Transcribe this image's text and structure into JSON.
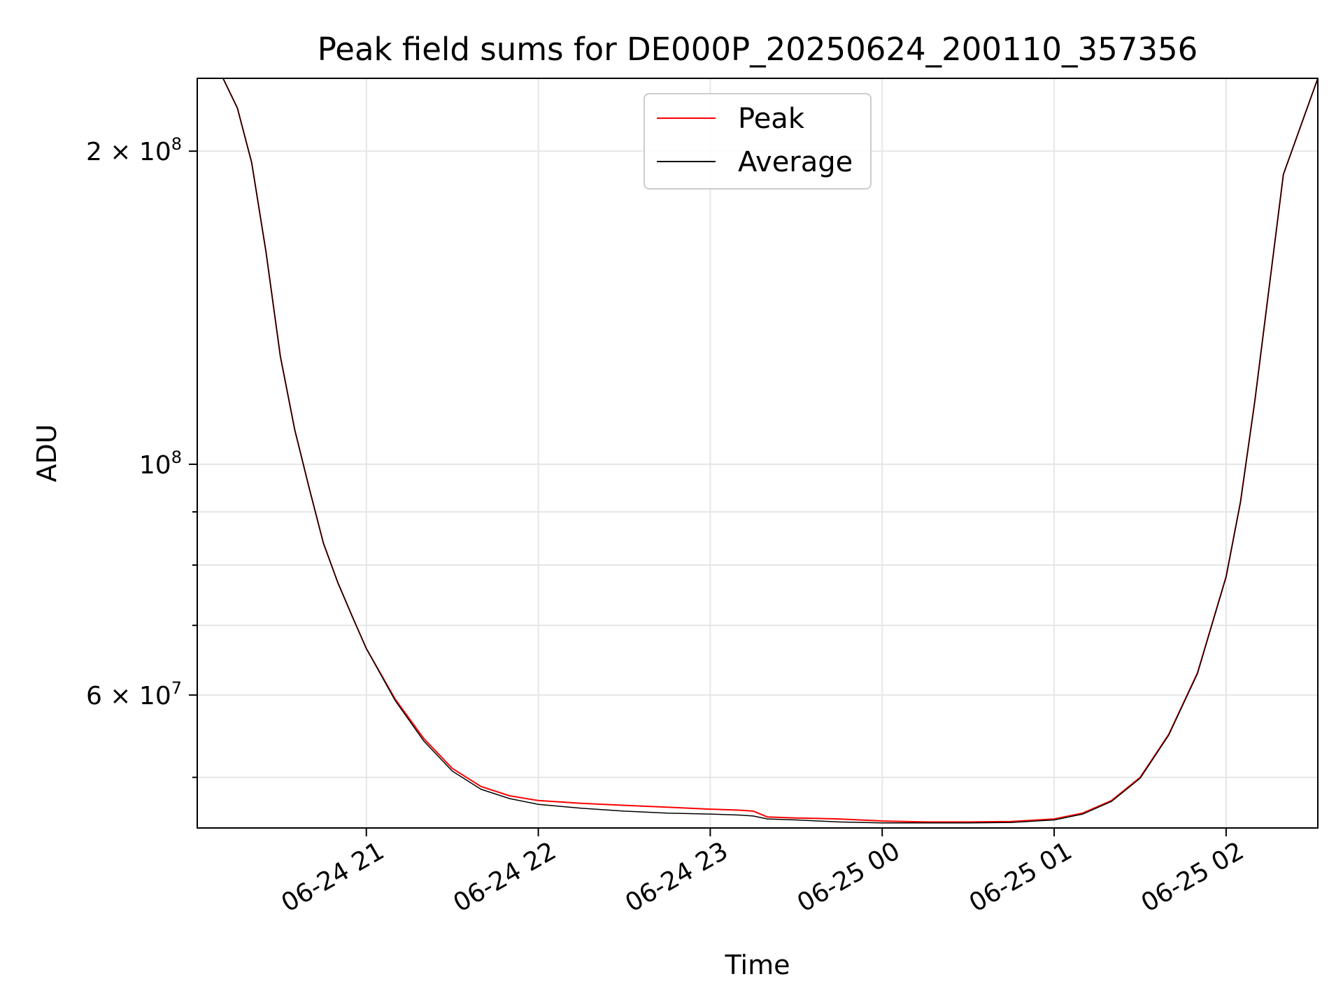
{
  "chart_data": {
    "type": "line",
    "title": "Peak field sums for DE000P_20250624_200110_357356",
    "xlabel": "Time",
    "ylabel": "ADU",
    "y_scale": "log",
    "ylim": [
      44700000,
      235000000
    ],
    "xlim": [
      "2025-06-24 20:01",
      "2025-06-25 02:32"
    ],
    "grid": true,
    "legend_position": "top-center",
    "x_ticks": [
      {
        "t": "2025-06-24 21:00",
        "label": "06-24 21"
      },
      {
        "t": "2025-06-24 22:00",
        "label": "06-24 22"
      },
      {
        "t": "2025-06-24 23:00",
        "label": "06-24 23"
      },
      {
        "t": "2025-06-25 00:00",
        "label": "06-25 00"
      },
      {
        "t": "2025-06-25 01:00",
        "label": "06-25 01"
      },
      {
        "t": "2025-06-25 02:00",
        "label": "06-25 02"
      }
    ],
    "y_major_ticks": [
      {
        "value": 60000000,
        "base": "6",
        "times": "×",
        "mant": "10",
        "exp": "7"
      },
      {
        "value": 100000000,
        "base": "",
        "times": "",
        "mant": "10",
        "exp": "8"
      },
      {
        "value": 200000000,
        "base": "2",
        "times": "×",
        "mant": "10",
        "exp": "8"
      }
    ],
    "y_minor_ticks": [
      50000000,
      70000000,
      80000000,
      90000000
    ],
    "series": [
      {
        "name": "Peak",
        "color": "#ff0000",
        "x": [
          "2025-06-24 20:01",
          "2025-06-24 20:10",
          "2025-06-24 20:15",
          "2025-06-24 20:20",
          "2025-06-24 20:25",
          "2025-06-24 20:30",
          "2025-06-24 20:35",
          "2025-06-24 20:40",
          "2025-06-24 20:45",
          "2025-06-24 20:50",
          "2025-06-24 20:55",
          "2025-06-24 21:00",
          "2025-06-24 21:10",
          "2025-06-24 21:20",
          "2025-06-24 21:30",
          "2025-06-24 21:40",
          "2025-06-24 21:50",
          "2025-06-24 22:00",
          "2025-06-24 22:15",
          "2025-06-24 22:30",
          "2025-06-24 22:45",
          "2025-06-24 23:00",
          "2025-06-24 23:10",
          "2025-06-24 23:15",
          "2025-06-24 23:20",
          "2025-06-24 23:30",
          "2025-06-24 23:45",
          "2025-06-25 00:00",
          "2025-06-25 00:15",
          "2025-06-25 00:30",
          "2025-06-25 00:45",
          "2025-06-25 01:00",
          "2025-06-25 01:10",
          "2025-06-25 01:20",
          "2025-06-25 01:30",
          "2025-06-25 01:40",
          "2025-06-25 01:50",
          "2025-06-25 02:00",
          "2025-06-25 02:05",
          "2025-06-25 02:10",
          "2025-06-25 02:20",
          "2025-06-25 02:32"
        ],
        "values": [
          235000000,
          235000000,
          220000000,
          195000000,
          160000000,
          127000000,
          108000000,
          95000000,
          84000000,
          77000000,
          71500000,
          66500000,
          59500000,
          54500000,
          51000000,
          49000000,
          48000000,
          47500000,
          47200000,
          47000000,
          46800000,
          46600000,
          46500000,
          46400000,
          45800000,
          45700000,
          45600000,
          45400000,
          45300000,
          45300000,
          45350000,
          45600000,
          46200000,
          47500000,
          50000000,
          55000000,
          63000000,
          78000000,
          92000000,
          115000000,
          190000000,
          235000000
        ]
      },
      {
        "name": "Average",
        "color": "#000000",
        "x": [
          "2025-06-24 20:01",
          "2025-06-24 20:10",
          "2025-06-24 20:15",
          "2025-06-24 20:20",
          "2025-06-24 20:25",
          "2025-06-24 20:30",
          "2025-06-24 20:35",
          "2025-06-24 20:40",
          "2025-06-24 20:45",
          "2025-06-24 20:50",
          "2025-06-24 20:55",
          "2025-06-24 21:00",
          "2025-06-24 21:10",
          "2025-06-24 21:20",
          "2025-06-24 21:30",
          "2025-06-24 21:40",
          "2025-06-24 21:50",
          "2025-06-24 22:00",
          "2025-06-24 22:15",
          "2025-06-24 22:30",
          "2025-06-24 22:45",
          "2025-06-24 23:00",
          "2025-06-24 23:10",
          "2025-06-24 23:15",
          "2025-06-24 23:20",
          "2025-06-24 23:30",
          "2025-06-24 23:45",
          "2025-06-25 00:00",
          "2025-06-25 00:15",
          "2025-06-25 00:30",
          "2025-06-25 00:45",
          "2025-06-25 01:00",
          "2025-06-25 01:10",
          "2025-06-25 01:20",
          "2025-06-25 01:30",
          "2025-06-25 01:40",
          "2025-06-25 01:50",
          "2025-06-25 02:00",
          "2025-06-25 02:05",
          "2025-06-25 02:10",
          "2025-06-25 02:20",
          "2025-06-25 02:32"
        ],
        "values": [
          235000000,
          235000000,
          220000000,
          195000000,
          160000000,
          127000000,
          108000000,
          95000000,
          84000000,
          77000000,
          71500000,
          66500000,
          59300000,
          54200000,
          50700000,
          48700000,
          47700000,
          47100000,
          46700000,
          46400000,
          46200000,
          46100000,
          46000000,
          45900000,
          45600000,
          45500000,
          45300000,
          45200000,
          45200000,
          45200000,
          45250000,
          45500000,
          46100000,
          47400000,
          49900000,
          54900000,
          62900000,
          77900000,
          91900000,
          114900000,
          190000000,
          235000000
        ]
      }
    ]
  }
}
